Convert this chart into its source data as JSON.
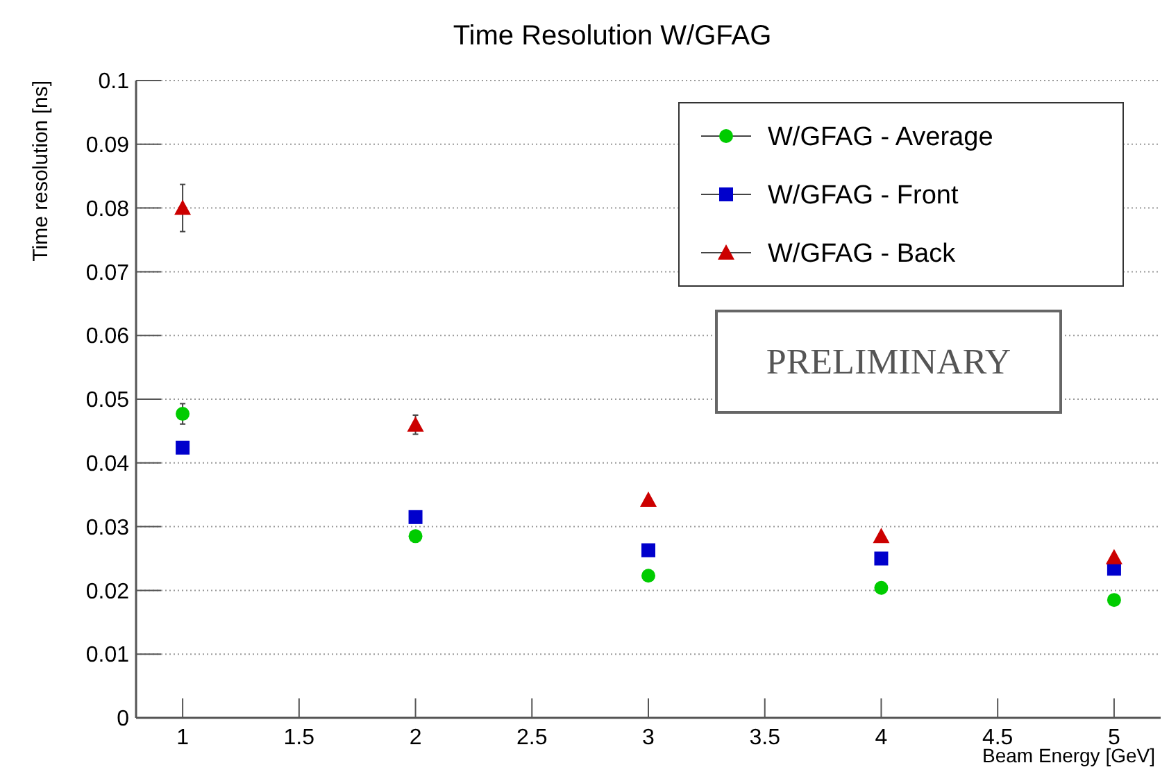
{
  "chart_data": {
    "type": "scatter",
    "title": "Time Resolution W/GFAG",
    "xlabel": "Beam Energy [GeV]",
    "ylabel": "Time resolution [ns]",
    "x": [
      1,
      2,
      3,
      4,
      5
    ],
    "series": [
      {
        "name": "W/GFAG - Average",
        "color": "#00cc00",
        "marker": "circle",
        "values": [
          0.0477,
          0.0285,
          0.0223,
          0.0204,
          0.0185
        ],
        "errors": [
          0.0016,
          null,
          null,
          null,
          null
        ]
      },
      {
        "name": "W/GFAG - Front",
        "color": "#0000cc",
        "marker": "square",
        "values": [
          0.0424,
          0.0315,
          0.0263,
          0.025,
          0.0234
        ]
      },
      {
        "name": "W/GFAG - Back",
        "color": "#cc0000",
        "marker": "triangle",
        "values": [
          0.08,
          0.046,
          0.0342,
          0.0285,
          0.0252
        ],
        "errors": [
          0.0037,
          0.0015,
          null,
          null,
          null
        ]
      }
    ],
    "xlim": [
      0.8,
      5.2
    ],
    "xticks": [
      1,
      1.5,
      2,
      2.5,
      3,
      3.5,
      4,
      4.5,
      5
    ],
    "ylim": [
      0,
      0.1
    ],
    "yticks": [
      0,
      0.01,
      0.02,
      0.03,
      0.04,
      0.05,
      0.06,
      0.07,
      0.08,
      0.09,
      0.1
    ],
    "grid": "y",
    "legend": "top right",
    "annotations": [
      "PRELIMINARY"
    ]
  }
}
